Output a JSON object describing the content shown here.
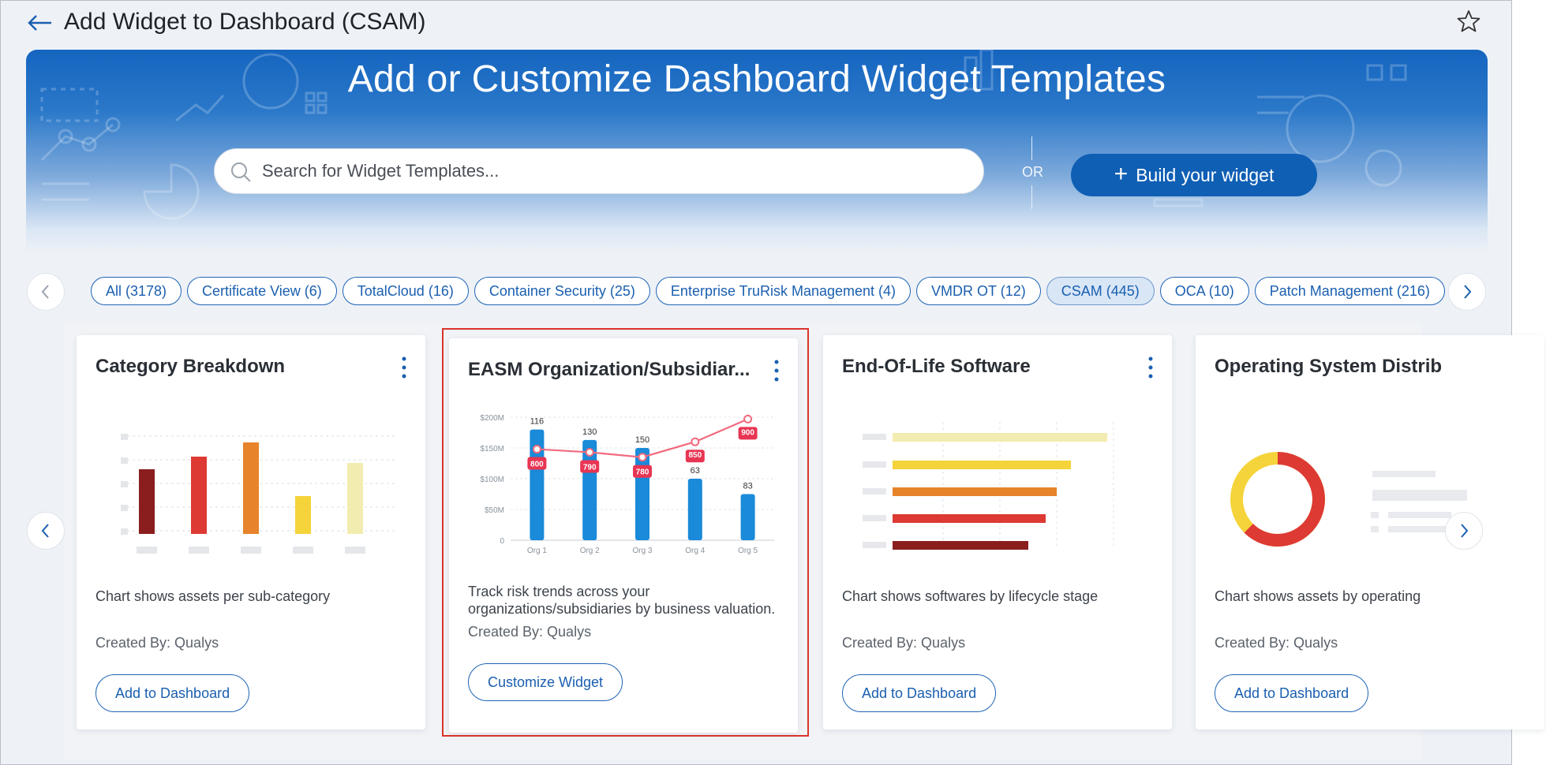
{
  "header": {
    "title": "Add Widget to Dashboard (CSAM)",
    "back_icon": "arrow-left-icon",
    "favorite_icon": "star-icon"
  },
  "banner": {
    "title": "Add or Customize Dashboard Widget Templates",
    "search_placeholder": "Search for Widget Templates...",
    "or_label": "OR",
    "build_button_icon": "+",
    "build_button_label": "Build your widget"
  },
  "filters": {
    "chips": [
      {
        "label": "All (3178)",
        "active": false
      },
      {
        "label": "Certificate View (6)",
        "active": false
      },
      {
        "label": "TotalCloud (16)",
        "active": false
      },
      {
        "label": "Container Security (25)",
        "active": false
      },
      {
        "label": "Enterprise TruRisk Management (4)",
        "active": false
      },
      {
        "label": "VMDR OT (12)",
        "active": false
      },
      {
        "label": "CSAM (445)",
        "active": true
      },
      {
        "label": "OCA (10)",
        "active": false
      },
      {
        "label": "Patch Management (216)",
        "active": false
      }
    ]
  },
  "cards": [
    {
      "title": "Category Breakdown",
      "description": "Chart shows assets per sub-category",
      "created_by": "Created By: Qualys",
      "button": "Add to Dashboard"
    },
    {
      "title": "EASM Organization/Subsidiar...",
      "description": "Track risk trends across your organizations/subsidiaries by business valuation.",
      "created_by": "Created By: Qualys",
      "button": "Customize Widget",
      "selected": true
    },
    {
      "title": "End-Of-Life Software",
      "description": "Chart shows softwares by lifecycle stage",
      "created_by": "Created By: Qualys",
      "button": "Add to Dashboard"
    },
    {
      "title": "Operating System Distrib",
      "description": "Chart shows assets by operating",
      "created_by": "Created By: Qualys",
      "button": "Add to Dashboard"
    }
  ],
  "easm_preview": {
    "y_ticks": [
      "$200M",
      "$150M",
      "$100M",
      "$50M",
      "0"
    ],
    "categories": [
      "Org 1",
      "Org 2",
      "Org 3",
      "Org 4",
      "Org 5"
    ],
    "bar_labels": [
      "116",
      "130",
      "150",
      "63",
      "83"
    ],
    "bar_values_m": [
      180,
      163,
      150,
      100,
      75
    ],
    "line_values_m": [
      148,
      143,
      135,
      160,
      197
    ],
    "line_labels": [
      "800",
      "790",
      "780",
      "850",
      "900"
    ]
  },
  "colors": {
    "primary": "#0f5fb4",
    "chip_active_bg": "#d8e6f6",
    "selection_outline": "#d9342b"
  }
}
